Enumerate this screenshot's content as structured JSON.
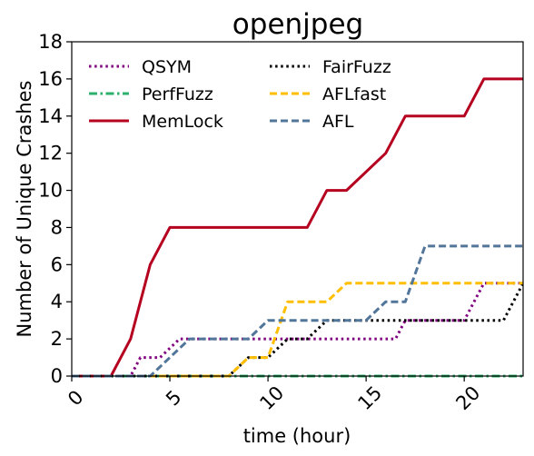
{
  "chart_data": {
    "type": "line",
    "title": "openjpeg",
    "xlabel": "time (hour)",
    "ylabel": "Number of Unique Crashes",
    "xlim": [
      0,
      23
    ],
    "ylim": [
      0,
      18
    ],
    "xticks": [
      0,
      5,
      10,
      15,
      20
    ],
    "yticks": [
      0,
      2,
      4,
      6,
      8,
      10,
      12,
      14,
      16,
      18
    ],
    "grid": false,
    "legend_position": "top-left",
    "series": [
      {
        "name": "QSYM",
        "color": "#800080",
        "dash": "dotted",
        "points": [
          [
            0,
            0
          ],
          [
            3,
            0
          ],
          [
            3.5,
            1
          ],
          [
            4.5,
            1
          ],
          [
            5,
            1.5
          ],
          [
            5.5,
            2
          ],
          [
            13,
            2
          ],
          [
            16,
            2
          ],
          [
            16.5,
            2
          ],
          [
            17,
            3
          ],
          [
            20,
            3
          ],
          [
            21,
            5
          ],
          [
            23,
            5
          ]
        ]
      },
      {
        "name": "PerfFuzz",
        "color": "#2db06b",
        "dash": "dashdot",
        "points": [
          [
            0,
            0
          ],
          [
            23,
            0
          ]
        ]
      },
      {
        "name": "MemLock",
        "color": "#b5001f",
        "dash": "solid",
        "points": [
          [
            0,
            0
          ],
          [
            2,
            0
          ],
          [
            3,
            2
          ],
          [
            4,
            6
          ],
          [
            5,
            8
          ],
          [
            12,
            8
          ],
          [
            13,
            10
          ],
          [
            14,
            10
          ],
          [
            16,
            12
          ],
          [
            17,
            14
          ],
          [
            20,
            14
          ],
          [
            21,
            16
          ],
          [
            23,
            16
          ]
        ]
      },
      {
        "name": "FairFuzz",
        "color": "#000000",
        "dash": "dotted",
        "points": [
          [
            0,
            0
          ],
          [
            8,
            0
          ],
          [
            9,
            1
          ],
          [
            10,
            1
          ],
          [
            11,
            2
          ],
          [
            12,
            2
          ],
          [
            13,
            3
          ],
          [
            22,
            3
          ],
          [
            23,
            5
          ]
        ]
      },
      {
        "name": "AFLfast",
        "color": "#ffbe00",
        "dash": "dashed",
        "points": [
          [
            0,
            0
          ],
          [
            8,
            0
          ],
          [
            9,
            1
          ],
          [
            10,
            1
          ],
          [
            11,
            4
          ],
          [
            13,
            4
          ],
          [
            14,
            5
          ],
          [
            23,
            5
          ]
        ]
      },
      {
        "name": "AFL",
        "color": "#52769a",
        "dash": "dashed",
        "points": [
          [
            0,
            0
          ],
          [
            4,
            0
          ],
          [
            6,
            2
          ],
          [
            9,
            2
          ],
          [
            10,
            3
          ],
          [
            15,
            3
          ],
          [
            16,
            4
          ],
          [
            17,
            4
          ],
          [
            18,
            7
          ],
          [
            23,
            7
          ]
        ]
      }
    ]
  }
}
